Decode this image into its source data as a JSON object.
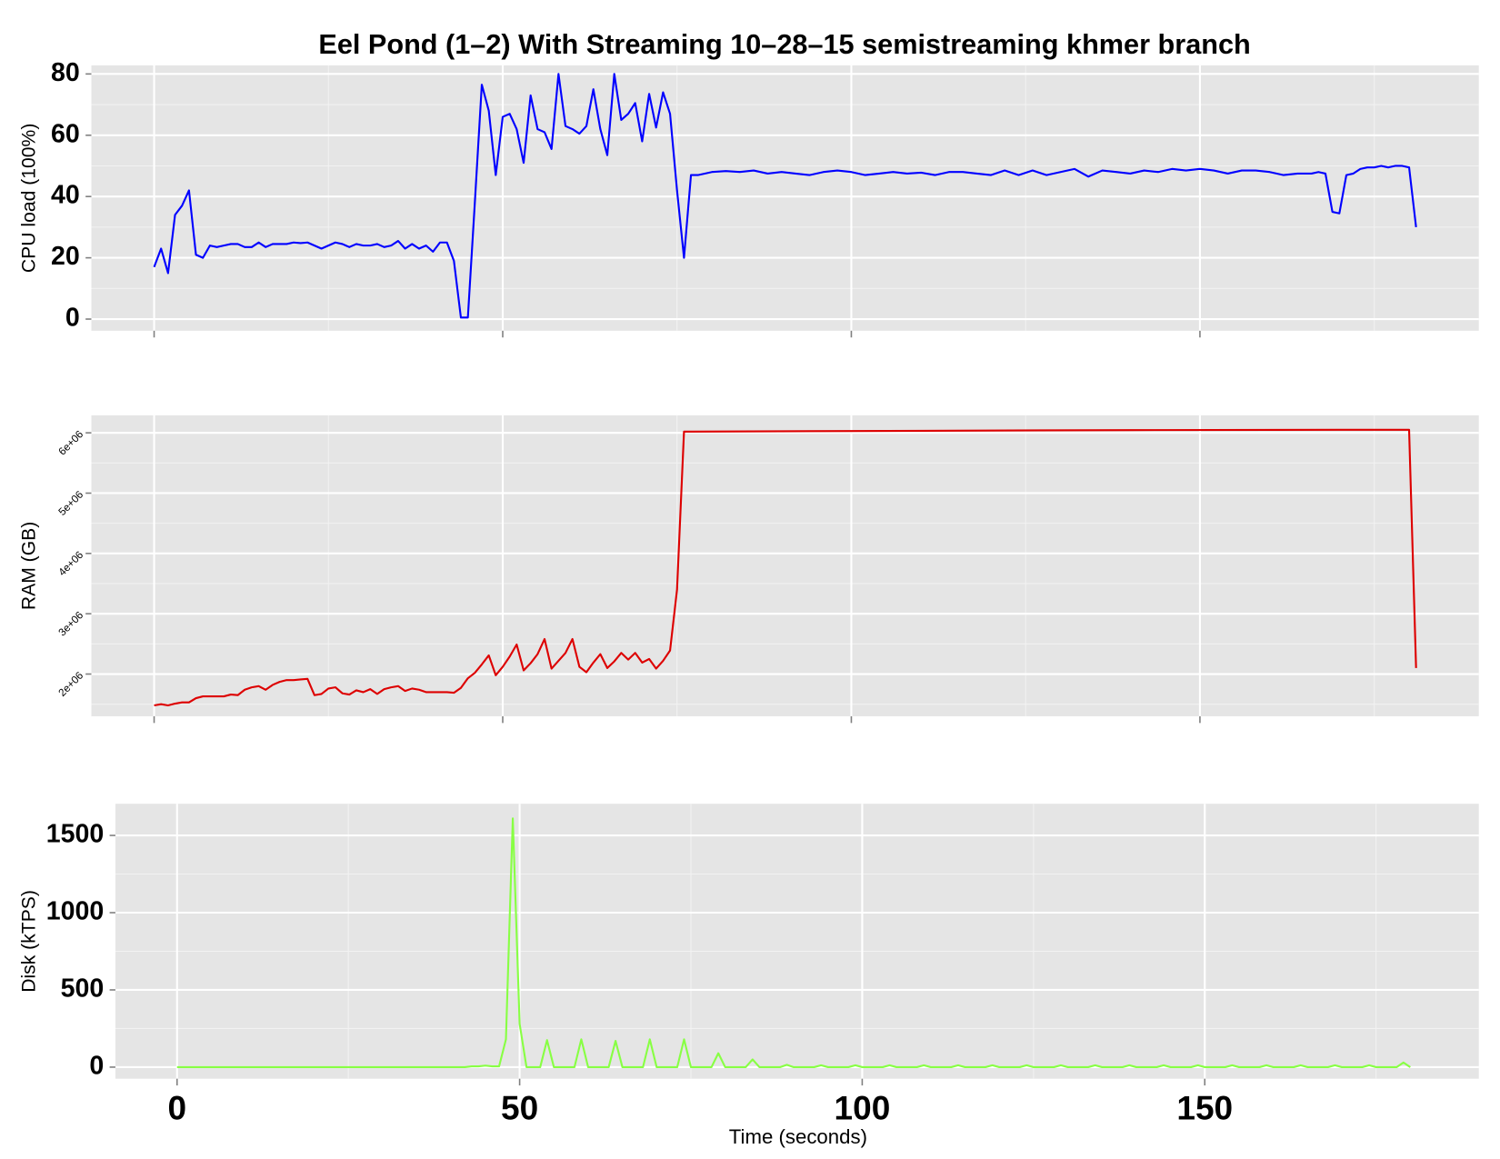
{
  "chart_data": [
    {
      "type": "line",
      "title": "Eel Pond (1–2) With Streaming 10–28–15 semistreaming khmer branch",
      "ylabel": "CPU load (100%)",
      "color": "#0000ff",
      "xlim": [
        -9,
        190
      ],
      "xticks": [
        0,
        50,
        100,
        150
      ],
      "xtick_labels": false,
      "ylim": [
        -3.8,
        82.8
      ],
      "yticks": [
        0,
        20,
        40,
        60,
        80
      ],
      "grid": true,
      "x": [
        0,
        1,
        2,
        3,
        4,
        5,
        6,
        7,
        8,
        9,
        10,
        11,
        12,
        13,
        14,
        15,
        16,
        17,
        18,
        19,
        20,
        21,
        22,
        23,
        24,
        25,
        26,
        27,
        28,
        29,
        30,
        31,
        32,
        33,
        34,
        35,
        36,
        37,
        38,
        39,
        40,
        41,
        42,
        43,
        44,
        45,
        46,
        47,
        48,
        49,
        50,
        51,
        52,
        53,
        54,
        55,
        56,
        57,
        58,
        59,
        60,
        61,
        62,
        63,
        64,
        65,
        66,
        67,
        68,
        69,
        70,
        71,
        72,
        73,
        74,
        75,
        76,
        77,
        78,
        80,
        82,
        84,
        86,
        88,
        90,
        92,
        94,
        96,
        98,
        100,
        102,
        104,
        106,
        108,
        110,
        112,
        114,
        116,
        118,
        120,
        122,
        124,
        126,
        128,
        130,
        132,
        134,
        136,
        138,
        140,
        142,
        144,
        146,
        148,
        150,
        152,
        154,
        156,
        158,
        160,
        162,
        164,
        166,
        167,
        168,
        169,
        170,
        171,
        172,
        173,
        174,
        175,
        176,
        177,
        178,
        179,
        180,
        181
      ],
      "values": [
        17,
        23,
        15,
        34,
        37,
        42,
        21,
        20,
        24,
        23.5,
        24,
        24.5,
        24.5,
        23.5,
        23.5,
        25,
        23.5,
        24.5,
        24.5,
        24.5,
        25,
        24.8,
        25,
        24,
        23,
        24,
        25,
        24.5,
        23.5,
        24.5,
        24,
        24,
        24.5,
        23.5,
        24,
        25.5,
        23,
        24.5,
        23,
        24,
        22,
        25,
        25,
        19,
        0.5,
        0.5,
        38,
        76.5,
        68,
        47,
        66,
        67,
        62,
        51,
        73,
        62,
        61,
        55.5,
        80,
        63,
        62,
        60.5,
        63,
        75,
        62,
        53.5,
        80,
        65,
        67,
        70.5,
        58,
        73.5,
        62.5,
        74,
        67,
        42,
        20,
        47,
        47,
        48,
        48.3,
        48,
        48.5,
        47.5,
        48,
        47.5,
        47,
        48,
        48.5,
        48,
        47,
        47.5,
        48,
        47.5,
        47.8,
        47,
        48,
        48,
        47.5,
        47,
        48.5,
        47,
        48.5,
        47,
        48,
        49,
        46.5,
        48.5,
        48,
        47.5,
        48.5,
        48,
        49,
        48.5,
        49,
        48.5,
        47.5,
        48.5,
        48.5,
        48,
        47,
        47.5,
        47.5,
        48,
        47.5,
        35,
        34.5,
        47,
        47.5,
        49,
        49.5,
        49.5,
        50,
        49.5,
        50,
        50,
        49.5,
        30
      ]
    },
    {
      "type": "line",
      "ylabel": "RAM (GB)",
      "color": "#dd0000",
      "xlim": [
        -9,
        190
      ],
      "xticks": [
        0,
        50,
        100,
        150
      ],
      "xtick_labels": false,
      "ylim": [
        1300000,
        6290000
      ],
      "ytick_angle": -45,
      "grid": true,
      "yticks": [
        {
          "value": 2000000,
          "label": "2e+06"
        },
        {
          "value": 3000000,
          "label": "3e+06"
        },
        {
          "value": 4000000,
          "label": "4e+06"
        },
        {
          "value": 5000000,
          "label": "5e+06"
        },
        {
          "value": 6000000,
          "label": "6e+06"
        }
      ],
      "x": [
        0,
        1,
        2,
        3,
        4,
        5,
        6,
        7,
        8,
        9,
        10,
        11,
        12,
        13,
        14,
        15,
        16,
        17,
        18,
        19,
        20,
        21,
        22,
        23,
        24,
        25,
        26,
        27,
        28,
        29,
        30,
        31,
        32,
        33,
        34,
        35,
        36,
        37,
        38,
        39,
        40,
        41,
        42,
        43,
        44,
        45,
        46,
        47,
        48,
        49,
        50,
        51,
        52,
        53,
        54,
        55,
        56,
        57,
        58,
        59,
        60,
        61,
        62,
        63,
        64,
        65,
        66,
        67,
        68,
        69,
        70,
        71,
        72,
        73,
        74,
        75,
        76,
        100,
        140,
        170,
        180,
        181
      ],
      "values": [
        1480000,
        1500000,
        1480000,
        1510000,
        1530000,
        1530000,
        1600000,
        1630000,
        1630000,
        1630000,
        1630000,
        1660000,
        1650000,
        1740000,
        1780000,
        1800000,
        1740000,
        1820000,
        1870000,
        1900000,
        1900000,
        1910000,
        1920000,
        1650000,
        1670000,
        1760000,
        1780000,
        1680000,
        1660000,
        1730000,
        1700000,
        1750000,
        1670000,
        1750000,
        1780000,
        1800000,
        1720000,
        1760000,
        1740000,
        1700000,
        1700000,
        1700000,
        1700000,
        1690000,
        1770000,
        1930000,
        2020000,
        2160000,
        2310000,
        1980000,
        2120000,
        2290000,
        2490000,
        2060000,
        2180000,
        2330000,
        2580000,
        2090000,
        2220000,
        2350000,
        2580000,
        2120000,
        2030000,
        2190000,
        2330000,
        2100000,
        2210000,
        2350000,
        2240000,
        2350000,
        2190000,
        2250000,
        2090000,
        2220000,
        2390000,
        3400000,
        6020000,
        6030000,
        6045000,
        6050000,
        6050000,
        2100000
      ]
    },
    {
      "type": "line",
      "ylabel": "Disk (kTPS)",
      "xlabel": "Time (seconds)",
      "color": "#88ff44",
      "xlim": [
        -9,
        190
      ],
      "xticks": [
        0,
        50,
        100,
        150
      ],
      "xtick_labels": true,
      "ylim": [
        -75,
        1705
      ],
      "yticks": [
        0,
        500,
        1000,
        1500
      ],
      "grid": true,
      "x": [
        0,
        42,
        43,
        44,
        45,
        46,
        47,
        48,
        49,
        50,
        51,
        53,
        54,
        55,
        58,
        59,
        60,
        63,
        64,
        65,
        68,
        69,
        70,
        73,
        74,
        75,
        78,
        79,
        80,
        83,
        84,
        85,
        88,
        89,
        90,
        93,
        94,
        95,
        98,
        99,
        100,
        103,
        104,
        105,
        108,
        109,
        110,
        113,
        114,
        115,
        118,
        119,
        120,
        123,
        124,
        125,
        128,
        129,
        130,
        133,
        134,
        135,
        138,
        139,
        140,
        143,
        144,
        145,
        148,
        149,
        150,
        153,
        154,
        155,
        158,
        159,
        160,
        163,
        164,
        165,
        168,
        169,
        170,
        173,
        174,
        175,
        178,
        179,
        180
      ],
      "values": [
        0,
        0,
        5,
        5,
        10,
        5,
        5,
        180,
        1610,
        280,
        0,
        0,
        175,
        0,
        0,
        180,
        0,
        0,
        170,
        0,
        0,
        180,
        0,
        0,
        180,
        0,
        0,
        90,
        0,
        0,
        50,
        0,
        0,
        15,
        0,
        0,
        12,
        0,
        0,
        12,
        0,
        0,
        12,
        0,
        0,
        12,
        0,
        0,
        12,
        0,
        0,
        12,
        0,
        0,
        12,
        0,
        0,
        12,
        0,
        0,
        12,
        0,
        0,
        12,
        0,
        0,
        12,
        0,
        0,
        12,
        0,
        0,
        12,
        0,
        0,
        12,
        0,
        0,
        12,
        0,
        0,
        12,
        0,
        0,
        12,
        0,
        0,
        30,
        0
      ]
    }
  ]
}
